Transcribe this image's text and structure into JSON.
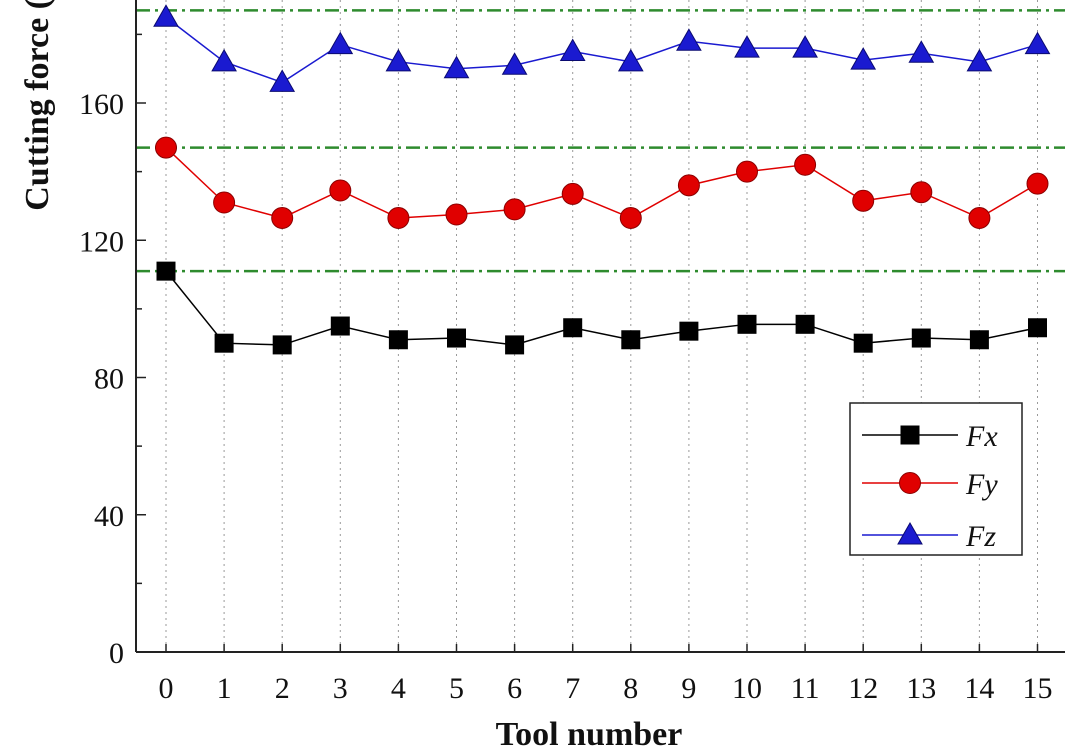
{
  "chart_data": {
    "type": "line",
    "xlabel": "Tool number",
    "ylabel": "Cutting force (",
    "x": [
      0,
      1,
      2,
      3,
      4,
      5,
      6,
      7,
      8,
      9,
      10,
      11,
      12,
      13,
      14,
      15
    ],
    "xlim": [
      -0.7,
      15.3
    ],
    "ylim": [
      0,
      190
    ],
    "yticks": [
      0,
      40,
      80,
      120,
      160
    ],
    "grid": "vertical dotted",
    "legend_position": "bottom-right",
    "reference_lines": [
      111,
      147,
      187
    ],
    "reference_line_color": "#2e8b2e",
    "series": [
      {
        "name": "Fx",
        "marker": "square",
        "color": "#000000",
        "values": [
          111,
          90,
          89.5,
          95,
          91,
          91.5,
          89.5,
          94.5,
          91,
          93.5,
          95.5,
          95.5,
          90,
          91.5,
          91,
          94.5
        ]
      },
      {
        "name": "Fy",
        "marker": "circle",
        "color": "#e00000",
        "values": [
          147,
          131,
          126.5,
          134.5,
          126.5,
          127.5,
          129,
          133.5,
          126.5,
          136,
          140,
          142,
          131.5,
          134,
          126.5,
          136.5
        ]
      },
      {
        "name": "Fz",
        "marker": "triangle",
        "color": "#1a1ad0",
        "values": [
          185,
          172,
          166,
          177,
          172,
          170,
          171,
          175,
          172,
          178,
          176,
          176,
          172.5,
          174.5,
          172,
          177
        ]
      }
    ]
  }
}
